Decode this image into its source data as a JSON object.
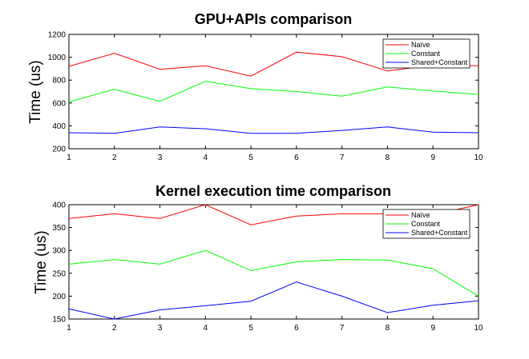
{
  "chart_data": [
    {
      "type": "line",
      "title": "GPU+APIs comparison",
      "xlabel": "",
      "ylabel": "Time (us)",
      "x": [
        1,
        2,
        3,
        4,
        5,
        6,
        7,
        8,
        9,
        10
      ],
      "xticks": [
        "1",
        "2",
        "3",
        "4",
        "5",
        "6",
        "7",
        "8",
        "9",
        "10"
      ],
      "xlim": [
        1,
        10
      ],
      "ylim": [
        200,
        1200
      ],
      "yticks": [
        "200",
        "400",
        "600",
        "800",
        "1000",
        "1200"
      ],
      "legend_position": "top-right",
      "grid": false,
      "series": [
        {
          "name": "Naïve",
          "color": "#ff0000",
          "values": [
            920,
            1035,
            895,
            925,
            835,
            1045,
            1005,
            880,
            930,
            925
          ]
        },
        {
          "name": "Constant",
          "color": "#00ff00",
          "values": [
            610,
            720,
            615,
            790,
            725,
            700,
            660,
            740,
            705,
            675
          ]
        },
        {
          "name": "Shared+Constant",
          "color": "#0000ff",
          "values": [
            340,
            335,
            390,
            375,
            335,
            335,
            360,
            390,
            345,
            340
          ]
        }
      ]
    },
    {
      "type": "line",
      "title": "Kernel execution time comparison",
      "xlabel": "",
      "ylabel": "Time (us)",
      "x": [
        1,
        2,
        3,
        4,
        5,
        6,
        7,
        8,
        9,
        10
      ],
      "xticks": [
        "1",
        "2",
        "3",
        "4",
        "5",
        "6",
        "7",
        "8",
        "9",
        "10"
      ],
      "xlim": [
        1,
        10
      ],
      "ylim": [
        150,
        400
      ],
      "yticks": [
        "150",
        "200",
        "250",
        "300",
        "350",
        "400"
      ],
      "legend_position": "top-right",
      "grid": false,
      "series": [
        {
          "name": "Naïve",
          "color": "#ff0000",
          "values": [
            370,
            380,
            370,
            400,
            356,
            375,
            380,
            380,
            378,
            400
          ]
        },
        {
          "name": "Constant",
          "color": "#00ff00",
          "values": [
            270,
            280,
            270,
            300,
            256,
            275,
            280,
            279,
            260,
            200
          ]
        },
        {
          "name": "Shared+Constant",
          "color": "#0000ff",
          "values": [
            172,
            150,
            170,
            179,
            189,
            231,
            200,
            164,
            180,
            190
          ]
        }
      ]
    }
  ]
}
